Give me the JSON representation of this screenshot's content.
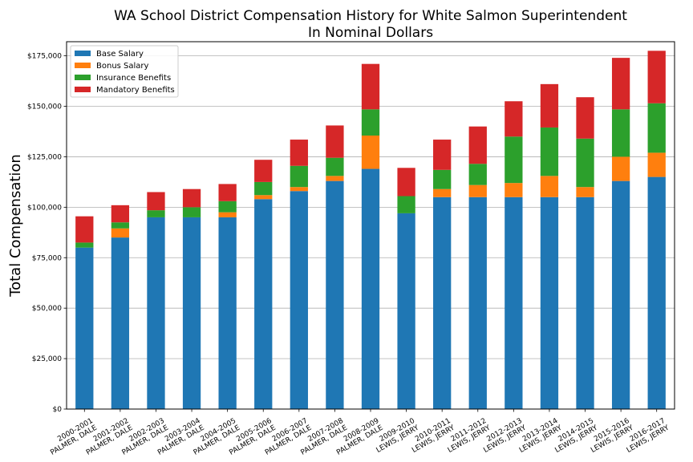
{
  "chart_data": {
    "type": "bar",
    "stacked": true,
    "title": "WA School District Compensation History for White Salmon Superintendent",
    "subtitle": "In Nominal Dollars",
    "xlabel": "",
    "ylabel": "Total Compensation",
    "ylim": [
      0,
      182000
    ],
    "yticks": [
      0,
      25000,
      50000,
      75000,
      100000,
      125000,
      150000,
      175000
    ],
    "ytick_labels": [
      "$0",
      "$25,000",
      "$50,000",
      "$75,000",
      "$100,000",
      "$125,000",
      "$150,000",
      "$175,000"
    ],
    "grid": "horizontal",
    "legend_position": "top-left",
    "categories": [
      [
        "2000-2001",
        "PALMER, DALE"
      ],
      [
        "2001-2002",
        "PALMER, DALE"
      ],
      [
        "2002-2003",
        "PALMER, DALE"
      ],
      [
        "2003-2004",
        "PALMER, DALE"
      ],
      [
        "2004-2005",
        "PALMER, DALE"
      ],
      [
        "2005-2006",
        "PALMER, DALE"
      ],
      [
        "2006-2007",
        "PALMER, DALE"
      ],
      [
        "2007-2008",
        "PALMER, DALE"
      ],
      [
        "2008-2009",
        "PALMER, DALE"
      ],
      [
        "2009-2010",
        "LEWIS, JERRY"
      ],
      [
        "2010-2011",
        "LEWIS, JERRY"
      ],
      [
        "2011-2012",
        "LEWIS, JERRY"
      ],
      [
        "2012-2013",
        "LEWIS, JERRY"
      ],
      [
        "2013-2014",
        "LEWIS, JERRY"
      ],
      [
        "2014-2015",
        "LEWIS, JERRY"
      ],
      [
        "2015-2016",
        "LEWIS, JERRY"
      ],
      [
        "2016-2017",
        "LEWIS, JERRY"
      ]
    ],
    "series": [
      {
        "name": "Base Salary",
        "color": "#1f77b4",
        "values": [
          80000,
          85000,
          95000,
          95000,
          95000,
          104000,
          108000,
          113000,
          119000,
          97000,
          105000,
          105000,
          105000,
          105000,
          105000,
          113000,
          115000
        ]
      },
      {
        "name": "Bonus Salary",
        "color": "#ff7f0e",
        "values": [
          0,
          4500,
          0,
          0,
          2500,
          2000,
          2000,
          2500,
          16500,
          0,
          4000,
          6000,
          7000,
          10500,
          5000,
          12000,
          12000
        ]
      },
      {
        "name": "Insurance Benefits",
        "color": "#2ca02c",
        "values": [
          2500,
          3000,
          3500,
          5000,
          5500,
          6500,
          10500,
          9000,
          13000,
          8500,
          9500,
          10500,
          23000,
          24000,
          24000,
          23500,
          24500
        ]
      },
      {
        "name": "Mandatory Benefits",
        "color": "#d62728",
        "values": [
          13000,
          8500,
          9000,
          9000,
          8500,
          11000,
          13000,
          16000,
          22500,
          14000,
          15000,
          18500,
          17500,
          21500,
          20500,
          25500,
          26000
        ]
      }
    ]
  }
}
